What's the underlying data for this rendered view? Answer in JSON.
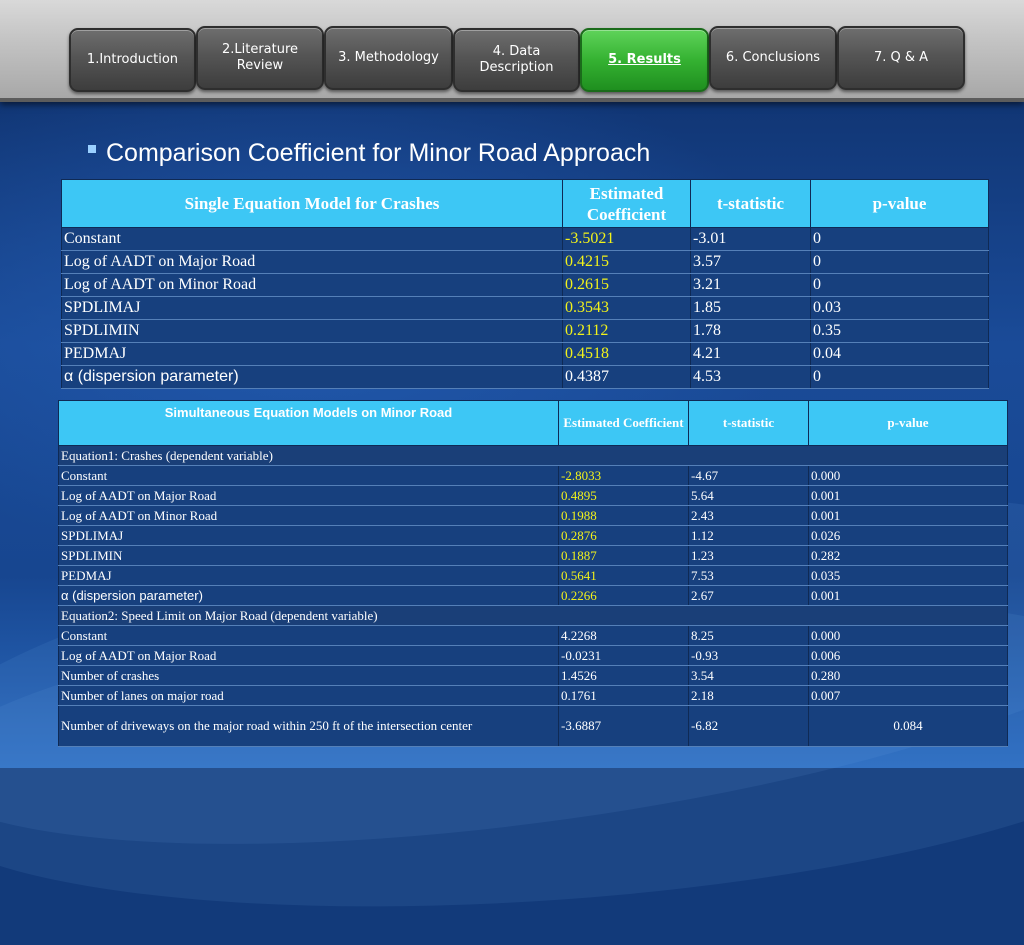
{
  "nav": {
    "items": [
      {
        "label": "1.Introduction",
        "active": false
      },
      {
        "label": "2.Literature Review",
        "active": false
      },
      {
        "label": "3. Methodology",
        "active": false
      },
      {
        "label": "4. Data Description",
        "active": false
      },
      {
        "label": "5. Results",
        "active": true
      },
      {
        "label": "6. Conclusions",
        "active": false
      },
      {
        "label": "7. Q & A",
        "active": false
      }
    ]
  },
  "heading": "Comparison Coefficient for Minor Road Approach",
  "colors": {
    "header": "#3dc7f5",
    "cell": "#17407e",
    "highlight": "#f2f21a",
    "active_tab": "#35b232"
  },
  "table1": {
    "headers": [
      "Single Equation Model for Crashes",
      "Estimated Coefficient",
      "t-statistic",
      "p-value"
    ],
    "rows": [
      [
        "Constant",
        "-3.5021",
        "-3.01",
        "0"
      ],
      [
        "Log of AADT on Major Road",
        "0.4215",
        "3.57",
        "0"
      ],
      [
        "Log of AADT on Minor Road",
        "0.2615",
        "3.21",
        "0"
      ],
      [
        "SPDLIMAJ",
        "0.3543",
        "1.85",
        "0.03"
      ],
      [
        "SPDLIMIN",
        "0.2112",
        "1.78",
        "0.35"
      ],
      [
        "PEDMAJ",
        "0.4518",
        "4.21",
        "0.04"
      ],
      [
        "α (dispersion parameter)",
        "0.4387",
        "4.53",
        "0"
      ]
    ]
  },
  "table2": {
    "headers": [
      "Simultaneous Equation Models on Minor Road",
      "Estimated Coefficient",
      "t-statistic",
      "p-value"
    ],
    "eq1_title": "Equation1: Crashes (dependent variable)",
    "eq1_rows": [
      [
        "Constant",
        "-2.8033",
        "-4.67",
        "0.000"
      ],
      [
        "Log of AADT on Major Road",
        "0.4895",
        "5.64",
        "0.001"
      ],
      [
        "Log of AADT on Minor Road",
        "0.1988",
        "2.43",
        "0.001"
      ],
      [
        "SPDLIMAJ",
        "0.2876",
        "1.12",
        "0.026"
      ],
      [
        "SPDLIMIN",
        "0.1887",
        "1.23",
        "0.282"
      ],
      [
        "PEDMAJ",
        "0.5641",
        "7.53",
        "0.035"
      ],
      [
        "α (dispersion parameter)",
        "0.2266",
        "2.67",
        "0.001"
      ]
    ],
    "eq2_title": "Equation2: Speed Limit on Major Road (dependent variable)",
    "eq2_rows": [
      [
        "Constant",
        "4.2268",
        "8.25",
        "0.000"
      ],
      [
        "Log of AADT on Major Road",
        "-0.0231",
        "-0.93",
        "0.006"
      ],
      [
        "Number of crashes",
        "1.4526",
        "3.54",
        "0.280"
      ],
      [
        "Number of lanes on major road",
        "0.1761",
        "2.18",
        "0.007"
      ],
      [
        "Number of driveways on the major road within 250 ft of the intersection center",
        "-3.6887",
        "-6.82",
        "0.084"
      ]
    ]
  }
}
